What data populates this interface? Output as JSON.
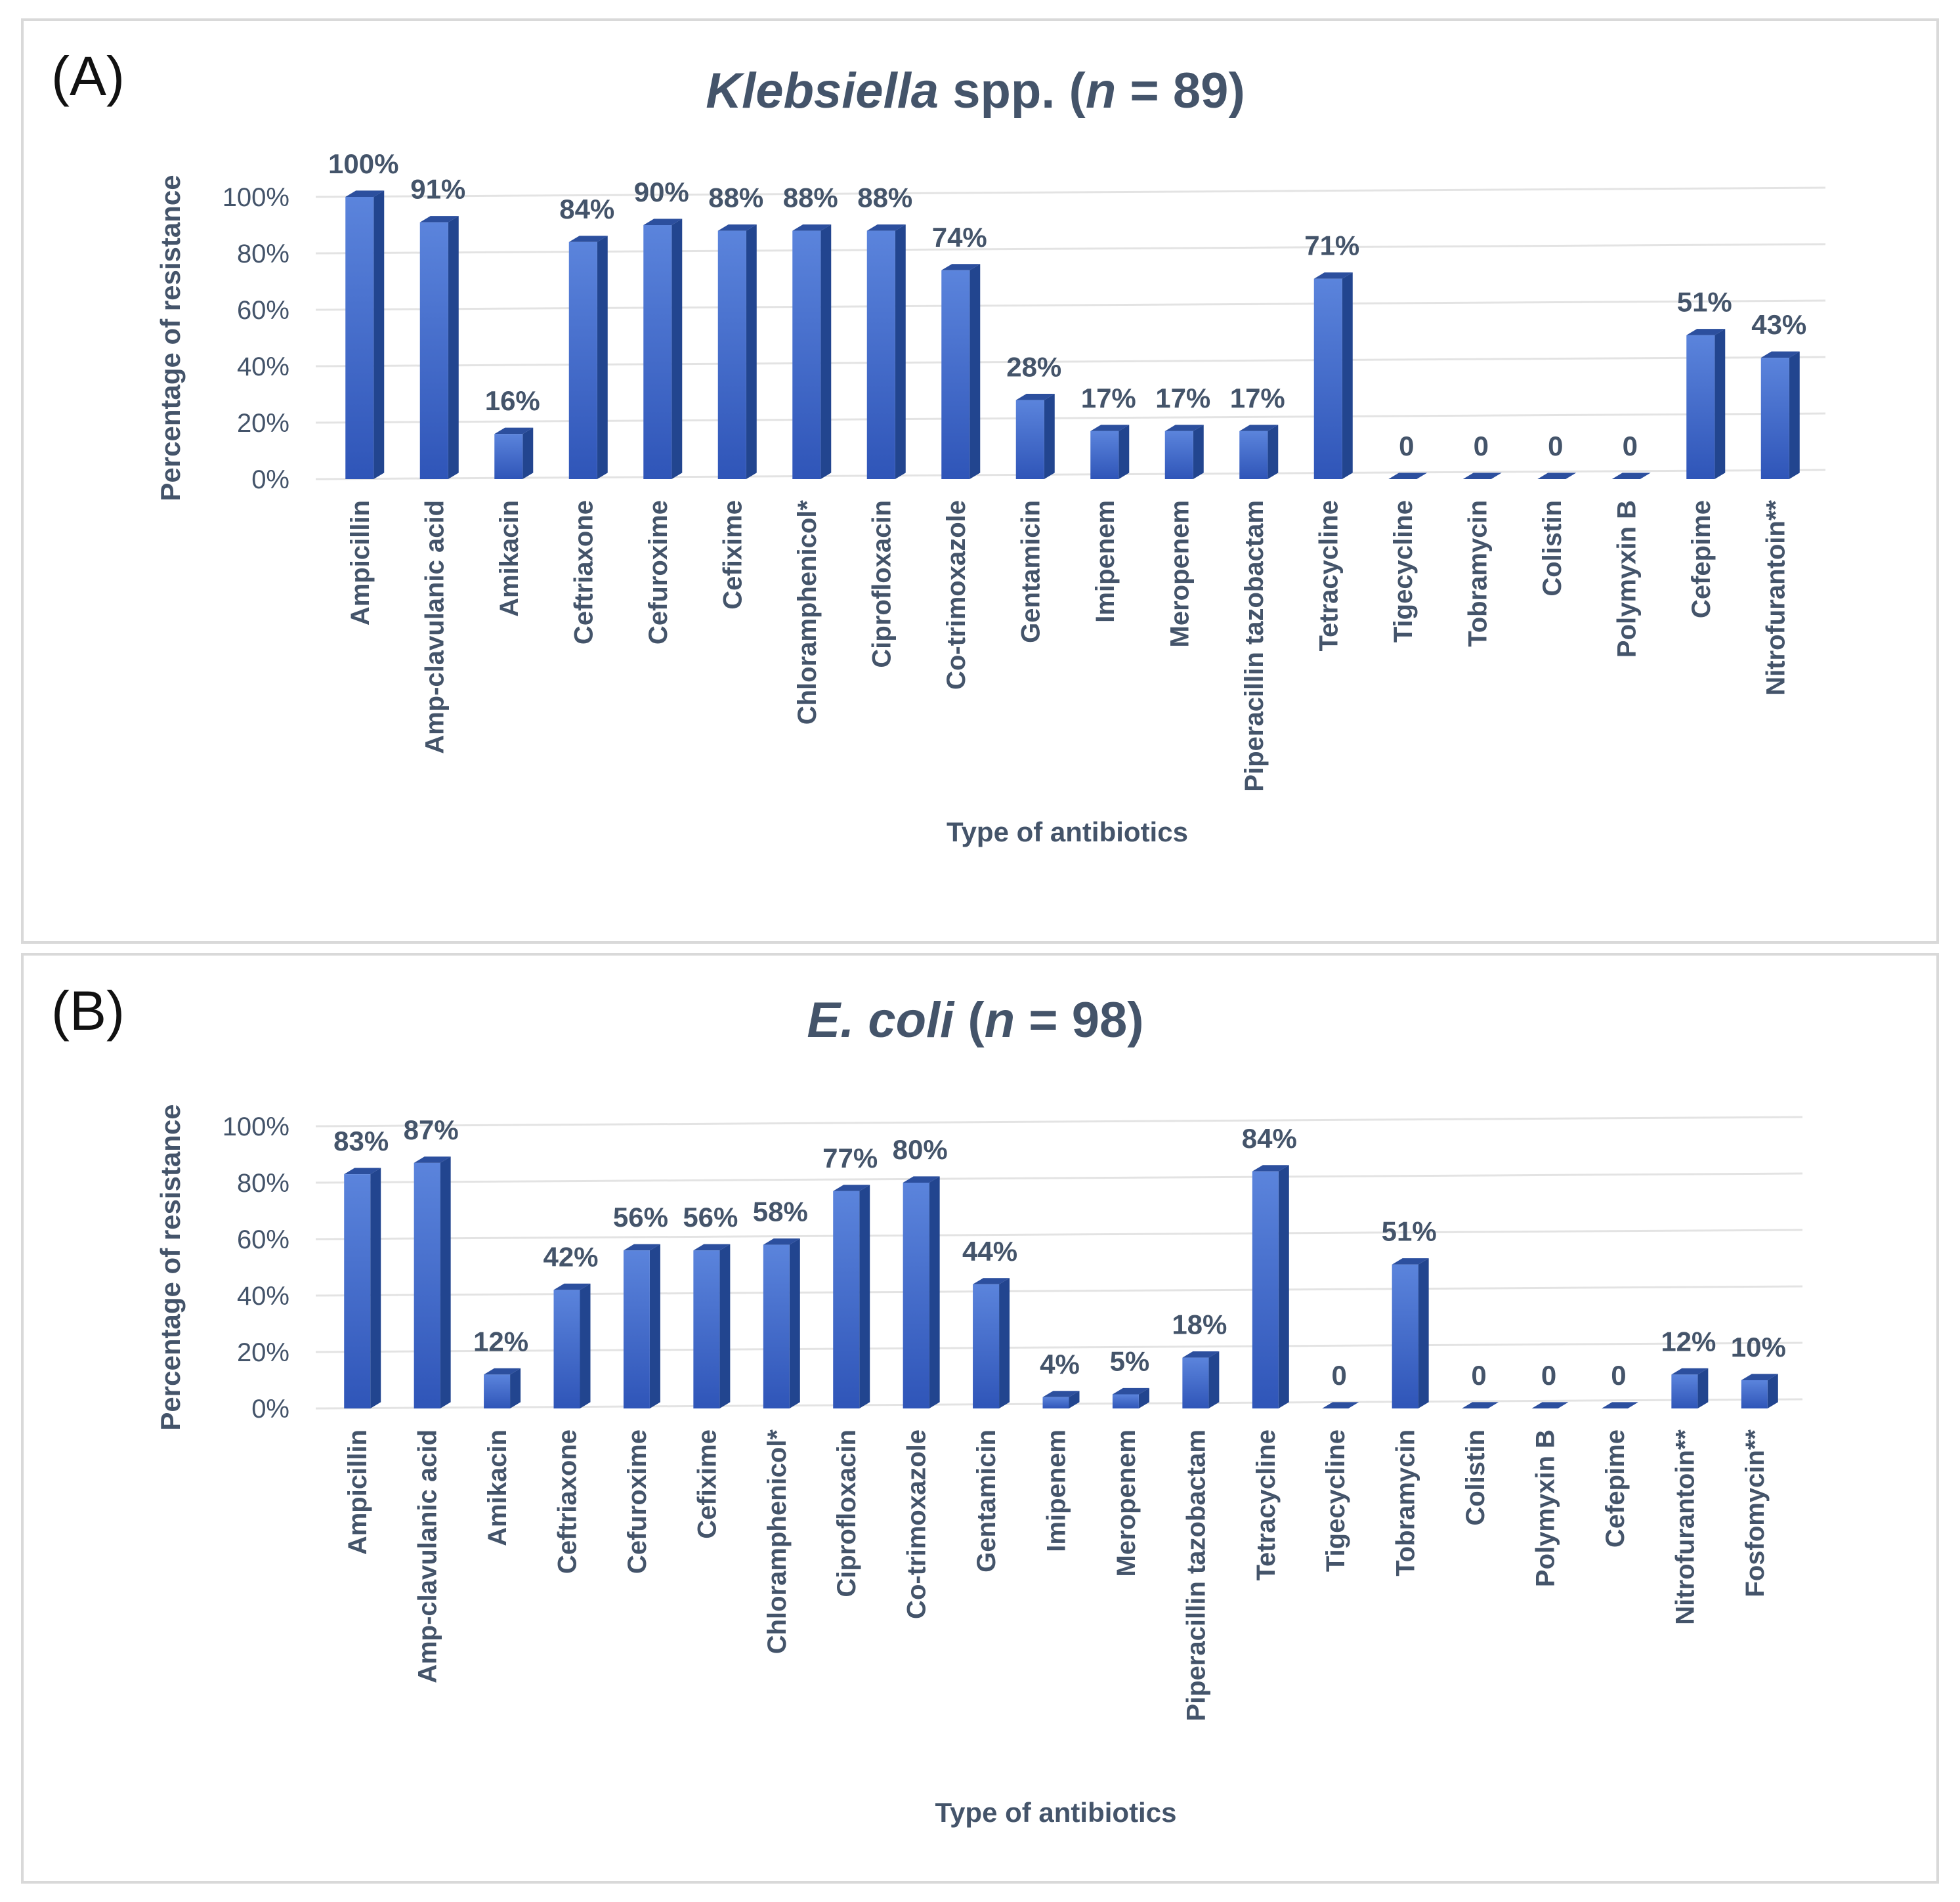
{
  "chart_data": [
    {
      "type": "bar",
      "panel_label": "(A)",
      "title_italic": "Klebsiella",
      "title_rest": " spp. (",
      "title_n": "n",
      "title_end": " = 89)",
      "xlabel": "Type of antibiotics",
      "ylabel": "Percentage of resistance",
      "ylim": [
        0,
        100
      ],
      "yticks": [
        "0%",
        "20%",
        "40%",
        "60%",
        "80%",
        "100%"
      ],
      "categories": [
        "Ampicillin",
        "Amp-clavulanic acid",
        "Amikacin",
        "Ceftriaxone",
        "Cefuroxime",
        "Cefixime",
        "Chloramphenicol*",
        "Ciprofloxacin",
        "Co-trimoxazole",
        "Gentamicin",
        "Imipenem",
        "Meropenem",
        "Piperacillin tazobactam",
        "Tetracycline",
        "Tigecycline",
        "Tobramycin",
        "Colistin",
        "Polymyxin B",
        "Cefepime",
        "Nitrofurantoin**"
      ],
      "values": [
        100,
        91,
        16,
        84,
        90,
        88,
        88,
        88,
        74,
        28,
        17,
        17,
        17,
        71,
        0,
        0,
        0,
        0,
        51,
        43
      ],
      "labels": [
        "100%",
        "91%",
        "16%",
        "84%",
        "90%",
        "88%",
        "88%",
        "88%",
        "74%",
        "28%",
        "17%",
        "17%",
        "17%",
        "71%",
        "0",
        "0",
        "0",
        "0",
        "51%",
        "43%"
      ],
      "grid": true,
      "bar_color": "#3a64c8"
    },
    {
      "type": "bar",
      "panel_label": "(B)",
      "title_italic": "E. coli",
      "title_rest": " (",
      "title_n": "n",
      "title_end": " = 98)",
      "xlabel": "Type of antibiotics",
      "ylabel": "Percentage of resistance",
      "ylim": [
        0,
        100
      ],
      "yticks": [
        "0%",
        "20%",
        "40%",
        "60%",
        "80%",
        "100%"
      ],
      "categories": [
        "Ampicillin",
        "Amp-clavulanic acid",
        "Amikacin",
        "Ceftriaxone",
        "Cefuroxime",
        "Cefixime",
        "Chloramphenicol*",
        "Ciprofloxacin",
        "Co-trimoxazole",
        "Gentamicin",
        "Imipenem",
        "Meropenem",
        "Piperacillin tazobactam",
        "Tetracycline",
        "Tigecycline",
        "Tobramycin",
        "Colistin",
        "Polymyxin B",
        "Cefepime",
        "Nitrofurantoin**",
        "Fosfomycin**"
      ],
      "values": [
        83,
        87,
        12,
        42,
        56,
        56,
        58,
        77,
        80,
        44,
        4,
        5,
        18,
        84,
        0,
        51,
        0,
        0,
        0,
        12,
        10
      ],
      "labels": [
        "83%",
        "87%",
        "12%",
        "42%",
        "56%",
        "56%",
        "58%",
        "77%",
        "80%",
        "44%",
        "4%",
        "5%",
        "18%",
        "84%",
        "0",
        "51%",
        "0",
        "0",
        "0",
        "12%",
        "10%"
      ],
      "grid": true,
      "bar_color": "#3a64c8"
    }
  ]
}
